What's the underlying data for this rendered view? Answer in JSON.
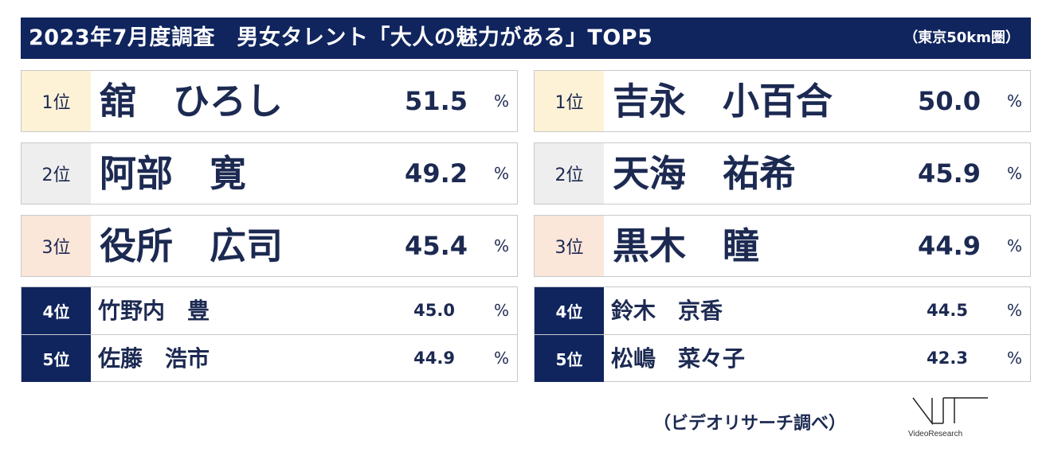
{
  "header": {
    "title": "2023年7月度調査　男女タレント「大人の魅力がある」TOP5",
    "region": "（東京50km圏）"
  },
  "percent_sign": "%",
  "male": {
    "top3": [
      {
        "rank": "1位",
        "name": "舘　ひろし",
        "score": "51.5"
      },
      {
        "rank": "2位",
        "name": "阿部　寛",
        "score": "49.2"
      },
      {
        "rank": "3位",
        "name": "役所　広司",
        "score": "45.4"
      }
    ],
    "others": [
      {
        "rank": "4位",
        "name": "竹野内　豊",
        "score": "45.0"
      },
      {
        "rank": "5位",
        "name": "佐藤　浩市",
        "score": "44.9"
      }
    ]
  },
  "female": {
    "top3": [
      {
        "rank": "1位",
        "name": "吉永　小百合",
        "score": "50.0"
      },
      {
        "rank": "2位",
        "name": "天海　祐希",
        "score": "45.9"
      },
      {
        "rank": "3位",
        "name": "黒木　瞳",
        "score": "44.9"
      }
    ],
    "others": [
      {
        "rank": "4位",
        "name": "鈴木　京香",
        "score": "44.5"
      },
      {
        "rank": "5位",
        "name": "松嶋　菜々子",
        "score": "42.3"
      }
    ]
  },
  "source": "（ビデオリサーチ調べ）",
  "logo": {
    "wordmark": "VideoResearch",
    "icon": "video-research-logo-icon"
  },
  "colors": {
    "header_bg": "#10255e",
    "rank1_bg": "#fdf2d6",
    "rank2_bg": "#eeeeee",
    "rank3_bg": "#fbe6da",
    "text": "#1c2a52"
  }
}
